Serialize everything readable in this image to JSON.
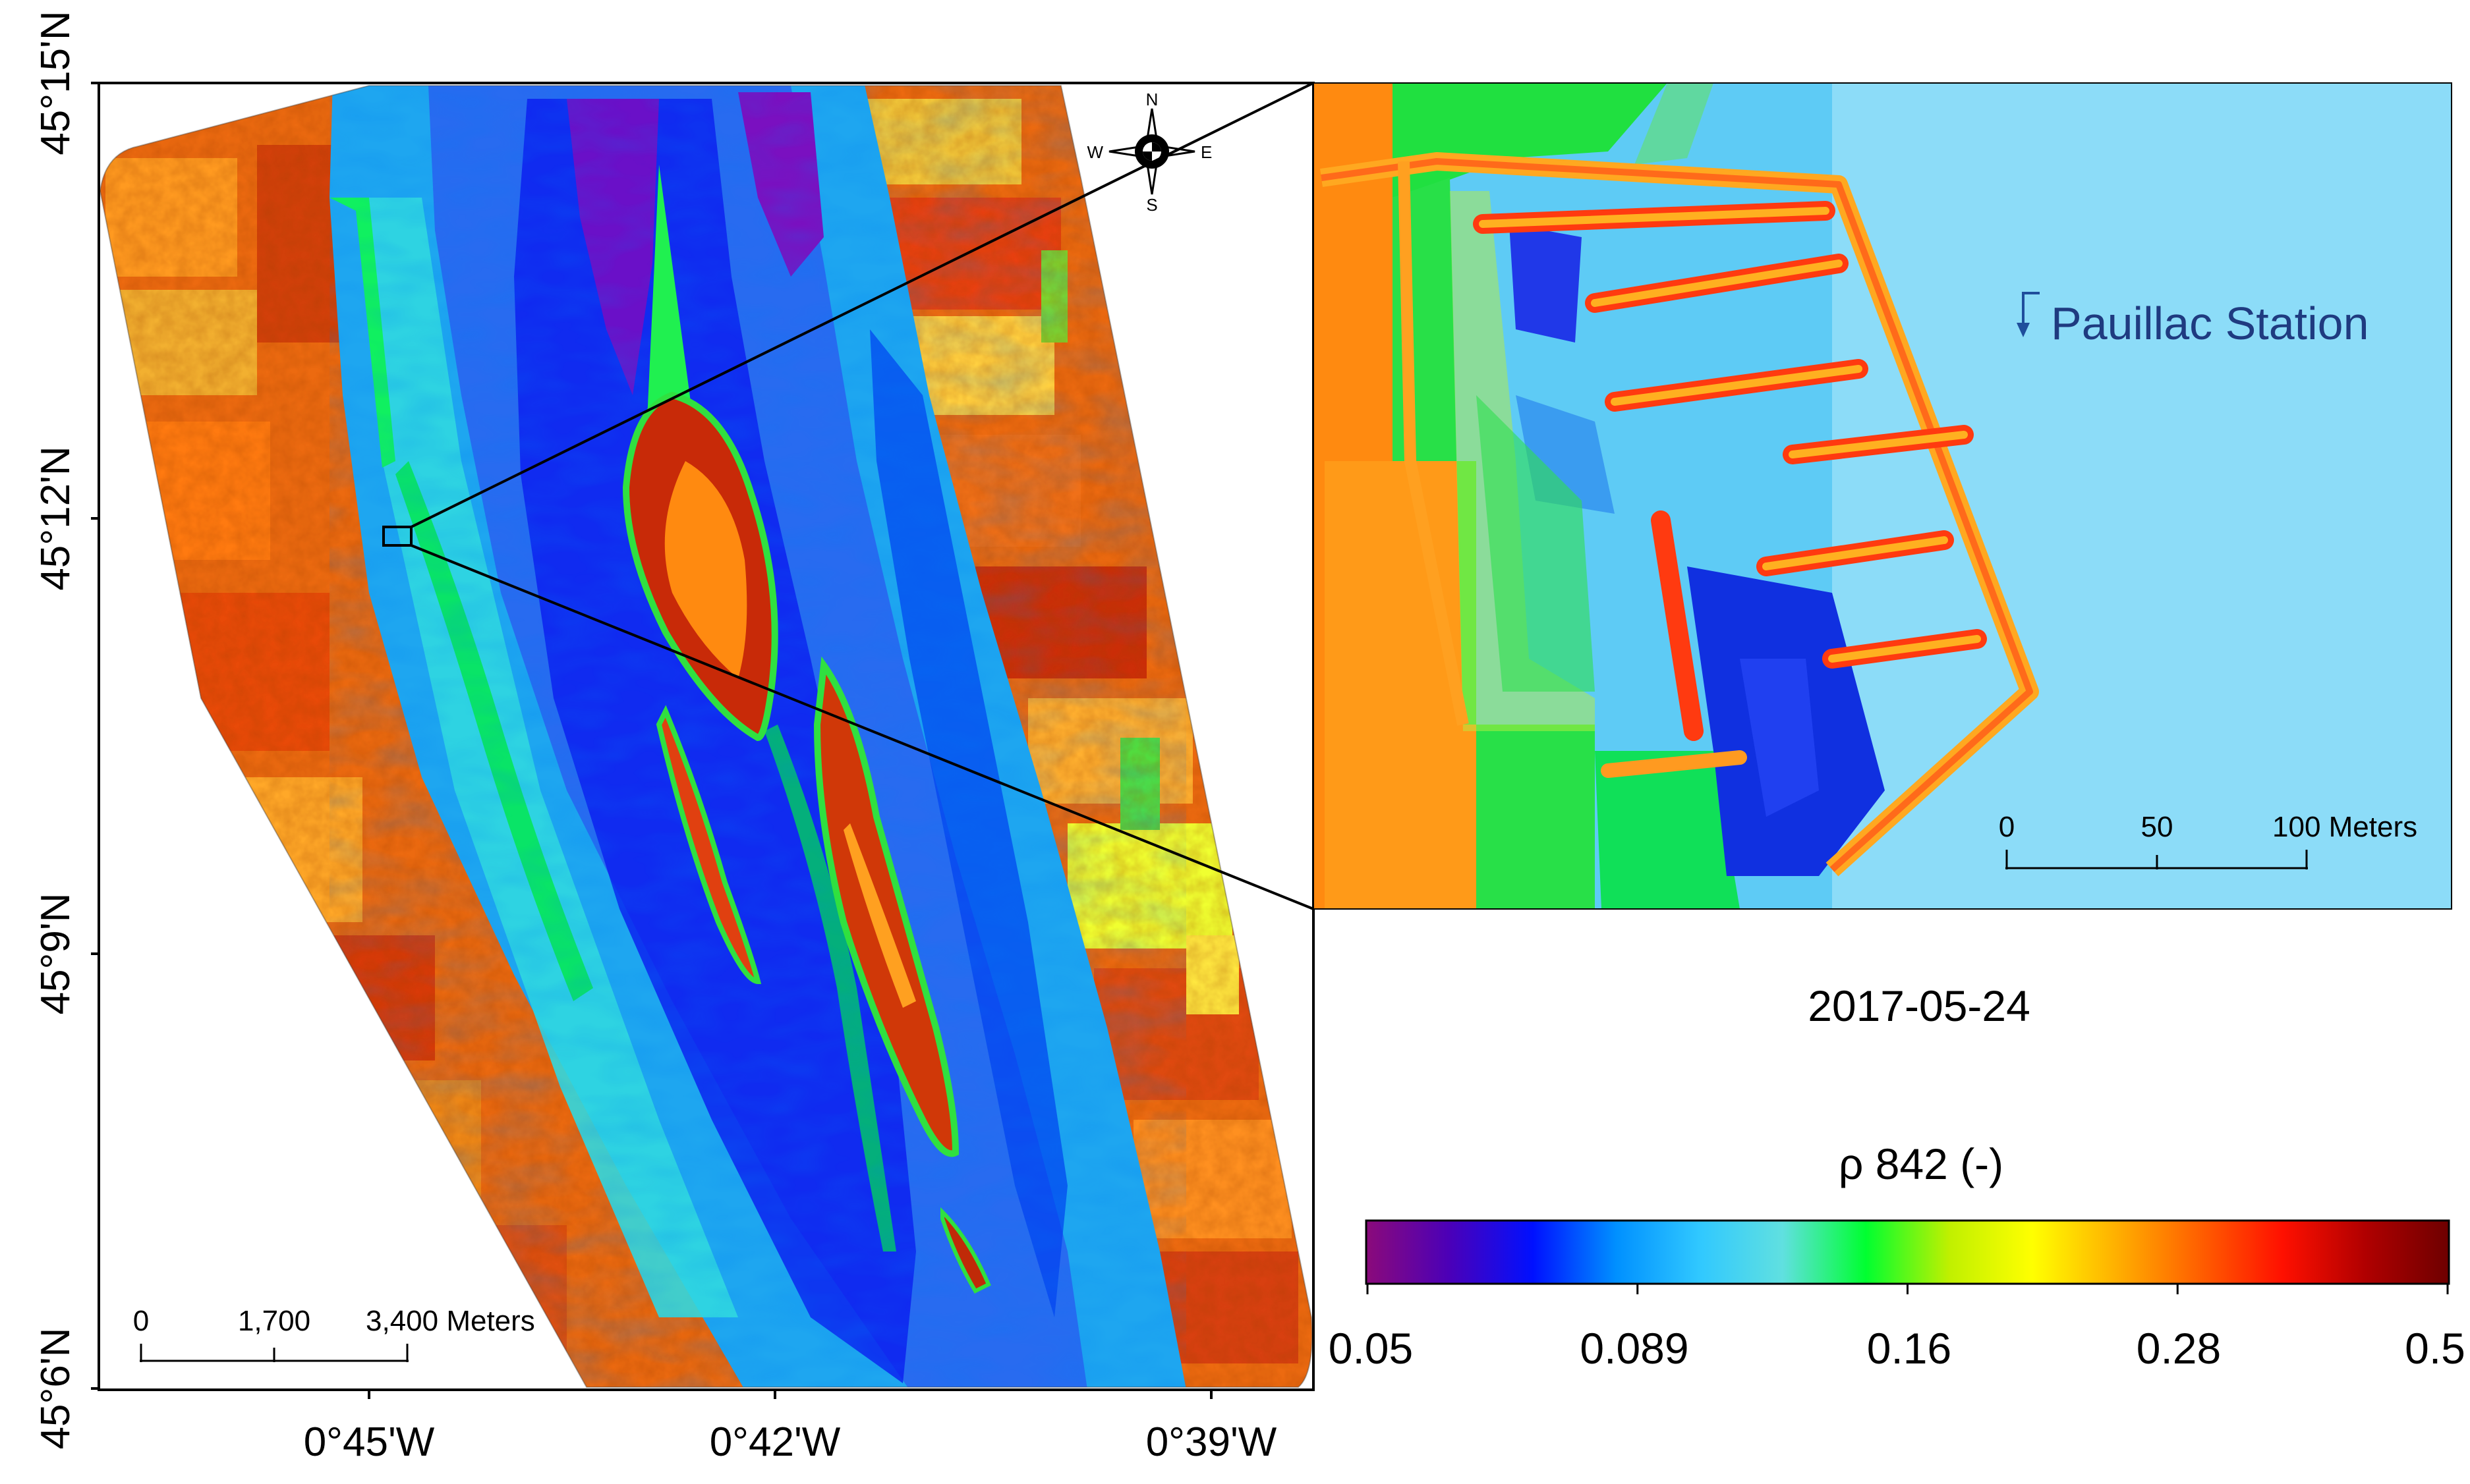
{
  "main_map": {
    "lat_labels": [
      "45°15'N",
      "45°12'N",
      "45°9'N",
      "45°6'N"
    ],
    "lon_labels": [
      "0°45'W",
      "0°42'W",
      "0°39'W"
    ],
    "scale_bar": {
      "ticks": [
        "0",
        "1,700",
        "3,400 Meters"
      ]
    },
    "north_arrow": {
      "n": "N",
      "s": "S",
      "e": "E",
      "w": "W"
    }
  },
  "inset": {
    "station_label": "Pauillac Station",
    "scale_bar": {
      "ticks": [
        "0",
        "50",
        "100 Meters"
      ]
    }
  },
  "date": "2017-05-24",
  "colorbar": {
    "title": "ρ 842 (-)",
    "tick_labels": [
      "0.05",
      "0.089",
      "0.16",
      "0.28",
      "0.5"
    ],
    "colors": [
      "#8b0a7a",
      "#4b00b8",
      "#0010ff",
      "#0090ff",
      "#30c8ff",
      "#60e0e0",
      "#00ff30",
      "#c0f000",
      "#ffff00",
      "#ffb000",
      "#ff6000",
      "#ff1000",
      "#b00000",
      "#6e0000"
    ]
  }
}
